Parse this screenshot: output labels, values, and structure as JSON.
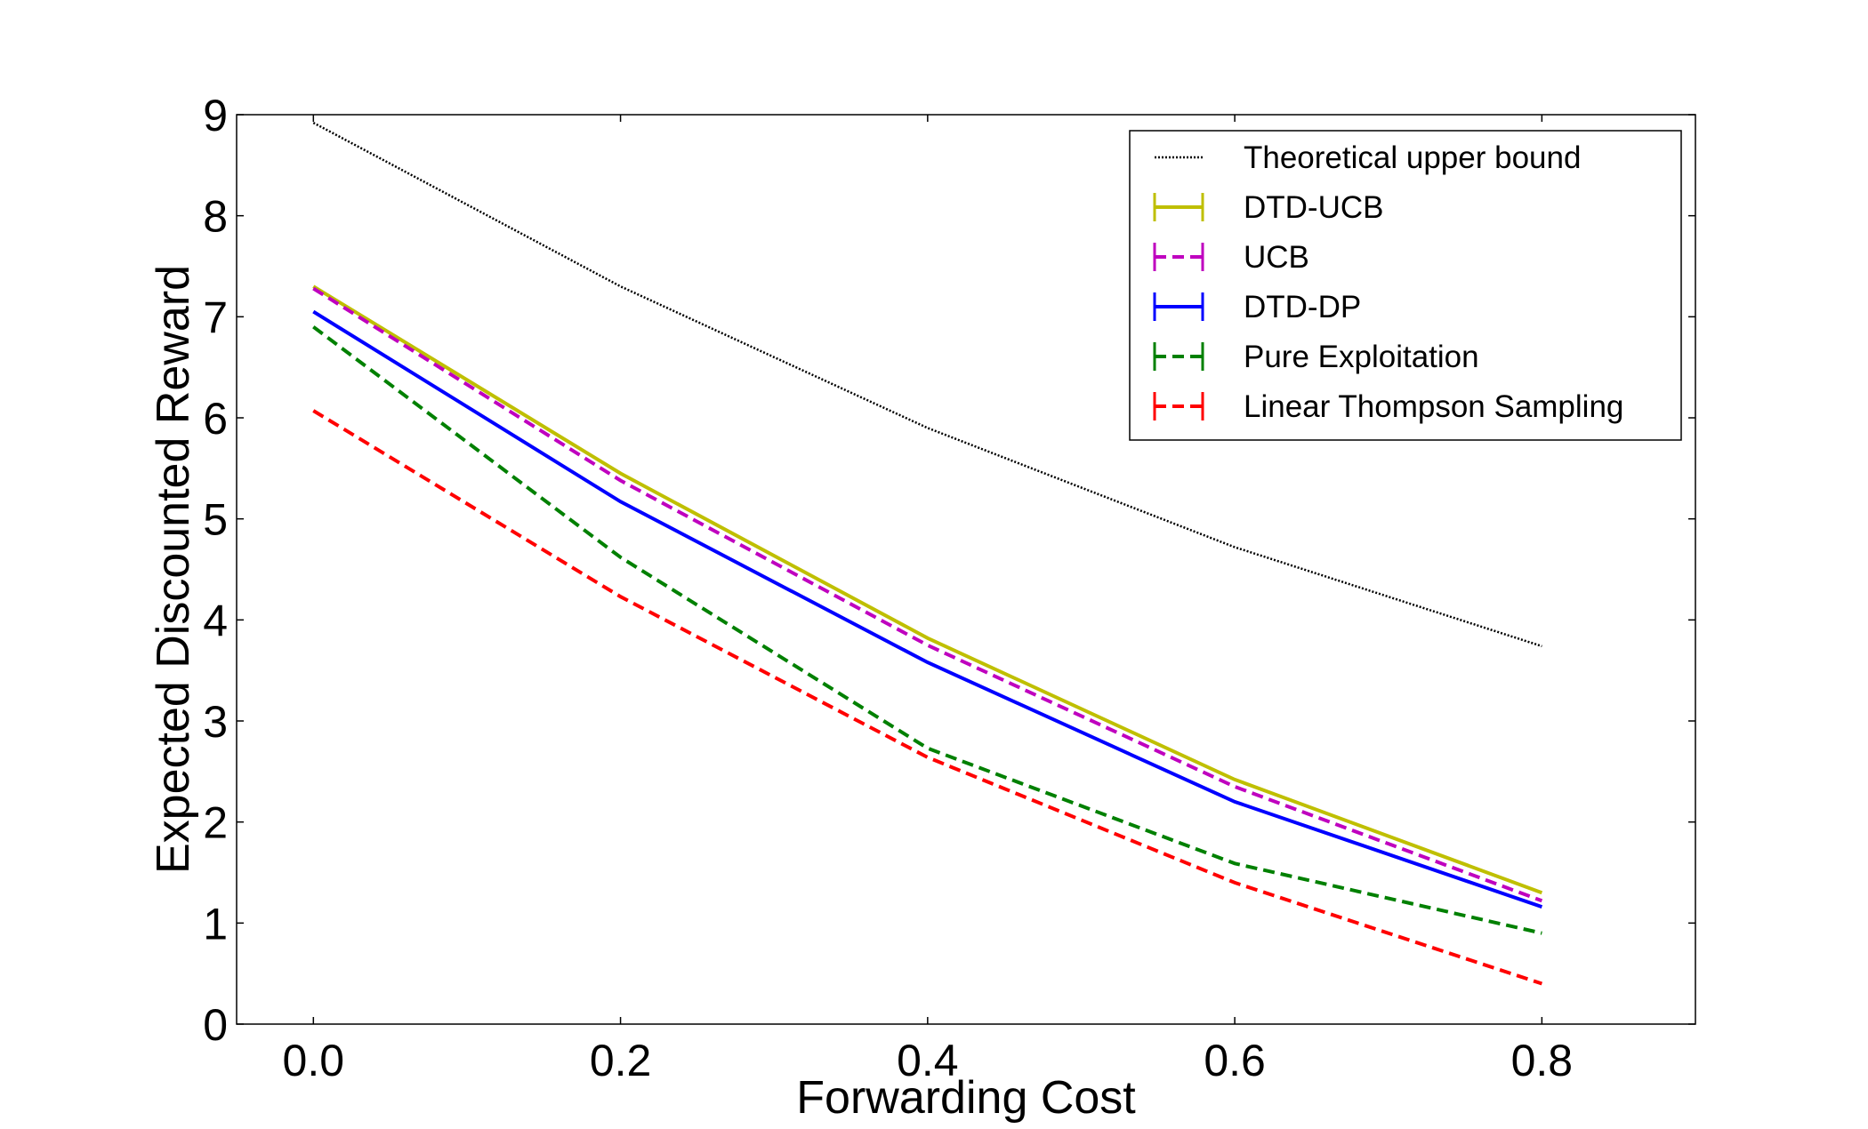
{
  "chart_data": {
    "type": "line",
    "title": "",
    "xlabel": "Forwarding Cost",
    "ylabel": "Expected Discounted Reward",
    "xlim": [
      -0.05,
      0.9
    ],
    "ylim": [
      0,
      9
    ],
    "xticks": [
      0.0,
      0.2,
      0.4,
      0.6,
      0.8
    ],
    "xtick_labels": [
      "0.0",
      "0.2",
      "0.4",
      "0.6",
      "0.8"
    ],
    "yticks": [
      0,
      1,
      2,
      3,
      4,
      5,
      6,
      7,
      8,
      9
    ],
    "ytick_labels": [
      "0",
      "1",
      "2",
      "3",
      "4",
      "5",
      "6",
      "7",
      "8",
      "9"
    ],
    "grid": false,
    "legend_position": "top-right",
    "x": [
      0.0,
      0.2,
      0.4,
      0.6,
      0.8
    ],
    "series": [
      {
        "name": "Theoretical upper bound",
        "values": [
          8.92,
          7.3,
          5.9,
          4.72,
          3.74
        ],
        "color": "#000000",
        "style": "dotted",
        "errorbars": false
      },
      {
        "name": "DTD-UCB",
        "values": [
          7.3,
          5.45,
          3.82,
          2.42,
          1.3
        ],
        "color": "#bfbf00",
        "style": "solid",
        "errorbars": true
      },
      {
        "name": "UCB",
        "values": [
          7.28,
          5.38,
          3.75,
          2.35,
          1.22
        ],
        "color": "#bf00bf",
        "style": "dashed",
        "errorbars": true
      },
      {
        "name": "DTD-DP",
        "values": [
          7.05,
          5.17,
          3.58,
          2.2,
          1.16
        ],
        "color": "#0000ff",
        "style": "solid",
        "errorbars": true
      },
      {
        "name": "Pure Exploitation",
        "values": [
          6.9,
          4.62,
          2.73,
          1.59,
          0.9
        ],
        "color": "#008000",
        "style": "dashed",
        "errorbars": true
      },
      {
        "name": "Linear Thompson Sampling",
        "values": [
          6.07,
          4.23,
          2.64,
          1.4,
          0.4
        ],
        "color": "#ff0000",
        "style": "dashed",
        "errorbars": true
      }
    ]
  }
}
